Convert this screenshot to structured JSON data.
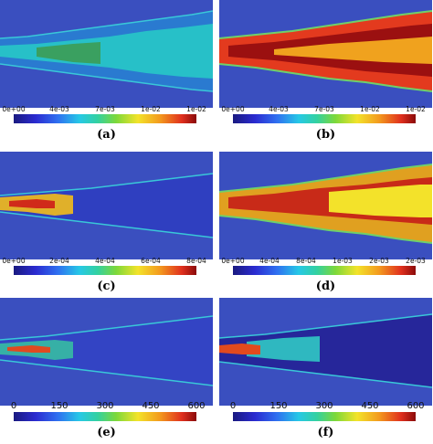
{
  "colors": {
    "background": "#3a4fbf",
    "colormap": [
      "#1a1a80",
      "#2b2bd0",
      "#2f6ff0",
      "#26c8e6",
      "#33d1a0",
      "#7cd83a",
      "#f3e32a",
      "#f39a1e",
      "#e0301e",
      "#8a0a0a"
    ]
  },
  "panels": [
    {
      "caption": "(a)",
      "ticks": [
        "0e+00",
        "4e-03",
        "7e-03",
        "1e-02",
        "1e-02"
      ]
    },
    {
      "caption": "(b)",
      "ticks": [
        "0e+00",
        "4e-03",
        "7e-03",
        "1e-02",
        "1e-02"
      ]
    },
    {
      "caption": "(c)",
      "ticks": [
        "0e+00",
        "2e-04",
        "4e-04",
        "6e-04",
        "8e-04"
      ]
    },
    {
      "caption": "(d)",
      "ticks": [
        "0e+00",
        "4e-04",
        "8e-04",
        "1e-03",
        "2e-03",
        "2e-03"
      ]
    },
    {
      "caption": "(e)",
      "ticks": [
        "0",
        "150",
        "300",
        "450",
        "600"
      ]
    },
    {
      "caption": "(f)",
      "ticks": [
        "0",
        "150",
        "300",
        "450",
        "600"
      ]
    }
  ]
}
